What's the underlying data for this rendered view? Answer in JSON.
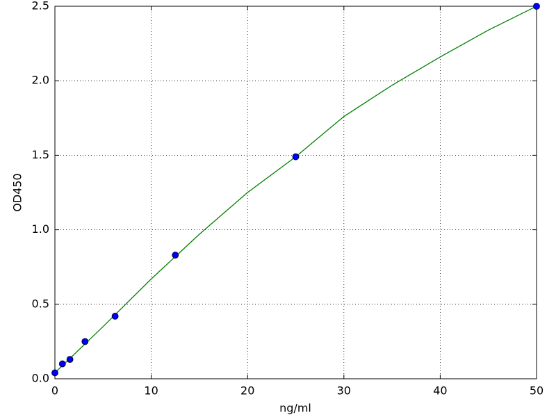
{
  "chart_data": {
    "type": "scatter",
    "xlabel": "ng/ml",
    "ylabel": "OD450",
    "xlim": [
      0,
      50
    ],
    "ylim": [
      0,
      2.5
    ],
    "xticks": [
      0,
      10,
      20,
      30,
      40,
      50
    ],
    "yticks": [
      {
        "value": 0,
        "label": "0.0"
      },
      0.5,
      {
        "value": 1,
        "label": "1.0"
      },
      1.5,
      {
        "value": 2,
        "label": "2.0"
      },
      2.5
    ],
    "grid": true,
    "series": [
      {
        "type": "line",
        "color": "#008000",
        "x": [
          0,
          5,
          10,
          15,
          20,
          25,
          30,
          35,
          40,
          45,
          50
        ],
        "values": [
          0.04,
          0.35,
          0.67,
          0.97,
          1.25,
          1.49,
          1.76,
          1.97,
          2.16,
          2.34,
          2.5
        ]
      },
      {
        "type": "scatter",
        "color": "#0000ff",
        "x": [
          0,
          0.78,
          1.56,
          3.125,
          6.25,
          12.5,
          25,
          50
        ],
        "values": [
          0.04,
          0.1,
          0.13,
          0.25,
          0.42,
          0.83,
          1.49,
          2.5
        ]
      }
    ]
  }
}
